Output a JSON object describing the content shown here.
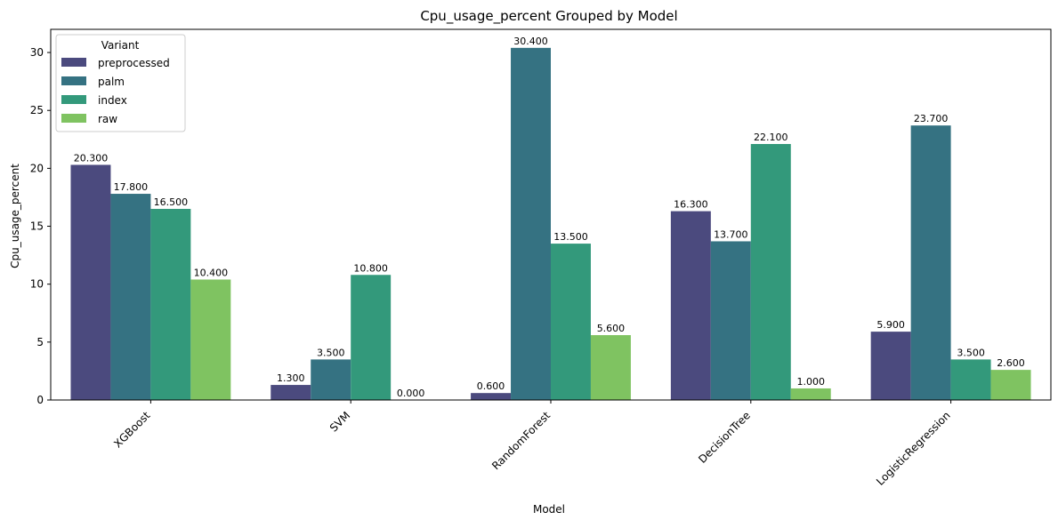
{
  "chart_data": {
    "type": "bar",
    "title": "Cpu_usage_percent Grouped by Model",
    "xlabel": "Model",
    "ylabel": "Cpu_usage_percent",
    "ylim": [
      0,
      32
    ],
    "yticks": [
      0,
      5,
      10,
      15,
      20,
      25,
      30
    ],
    "categories": [
      "XGBoost",
      "SVM",
      "RandomForest",
      "DecisionTree",
      "LogisticRegression"
    ],
    "legend": {
      "title": "Variant",
      "placement": "top-left"
    },
    "value_label_format": "0.000",
    "series": [
      {
        "name": "preprocessed",
        "color": "#4b4a7e",
        "values": [
          20.3,
          1.3,
          0.6,
          16.3,
          5.9
        ]
      },
      {
        "name": "palm",
        "color": "#357282",
        "values": [
          17.8,
          3.5,
          30.4,
          13.7,
          23.7
        ]
      },
      {
        "name": "index",
        "color": "#33997b",
        "values": [
          16.5,
          10.8,
          13.5,
          22.1,
          3.5
        ]
      },
      {
        "name": "raw",
        "color": "#7fc361",
        "values": [
          10.4,
          0.0,
          5.6,
          1.0,
          2.6
        ]
      }
    ]
  }
}
